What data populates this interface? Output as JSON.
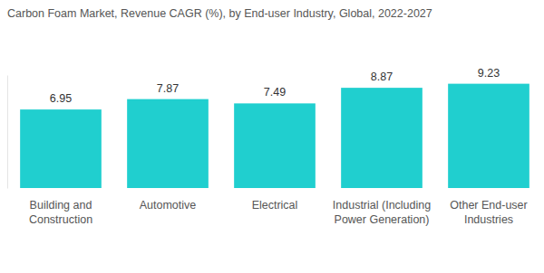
{
  "chart_data": {
    "type": "bar",
    "title": "Carbon Foam Market, Revenue CAGR (%), by End-user Industry, Global, 2022-2027",
    "categories": [
      "Building and Construction",
      "Automotive",
      "Electrical",
      "Industrial (Including Power Generation)",
      "Other End-user Industries"
    ],
    "values": [
      6.95,
      7.87,
      7.49,
      8.87,
      9.23
    ],
    "color": "#20cfcf",
    "ylim": [
      0,
      10
    ],
    "yticks": [],
    "grid": false,
    "data_labels": true,
    "tick_labels": "x"
  }
}
